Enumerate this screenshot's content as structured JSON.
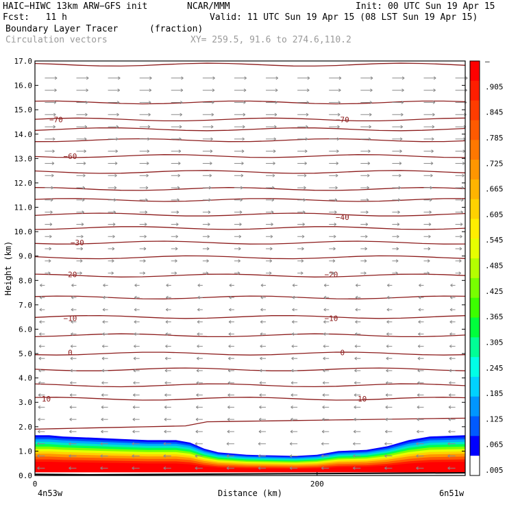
{
  "header": {
    "model": "HAIC−HIWC 13km ARW−GFS init",
    "org": "NCAR/MMM",
    "init": "Init: 00 UTC Sun 19 Apr 15",
    "fcst": "Fcst:   11 h",
    "valid": "Valid: 11 UTC Sun 19 Apr 15 (08 LST Sun 19 Apr 15)",
    "field": "Boundary Layer Tracer",
    "field_units": "(fraction)",
    "overlay": "Circulation vectors",
    "xy": "XY= 259.5, 91.6 to 274.6,110.2"
  },
  "chart_data": {
    "type": "heatmap",
    "xlabel": "Distance (km)",
    "ylabel": "Height (km)",
    "x_ticks": [
      "0",
      "200"
    ],
    "x_tick_values": [
      0,
      200
    ],
    "x_end_labels": [
      "4n53w",
      "6n51w"
    ],
    "xlim": [
      0,
      305
    ],
    "ylim": [
      0,
      17
    ],
    "y_ticks": [
      "0.0",
      "1.0",
      "2.0",
      "3.0",
      "4.0",
      "5.0",
      "6.0",
      "7.0",
      "8.0",
      "9.0",
      "10.0",
      "11.0",
      "12.0",
      "13.0",
      "14.0",
      "15.0",
      "16.0",
      "17.0"
    ],
    "colorbar": {
      "labels": [
        "–",
        ".905",
        ".845",
        ".785",
        ".725",
        ".665",
        ".605",
        ".545",
        ".485",
        ".425",
        ".365",
        ".305",
        ".245",
        ".185",
        ".125",
        ".065",
        ".005"
      ],
      "colors": [
        "#ff0000",
        "#ff1e00",
        "#ff3c00",
        "#ff5a00",
        "#ff7800",
        "#ff9600",
        "#ffb400",
        "#ffd200",
        "#ffee00",
        "#e6ff00",
        "#b4ff00",
        "#78ff00",
        "#3cff00",
        "#00ff3c",
        "#00ff96",
        "#00ffe6",
        "#00d2ff",
        "#0096ff",
        "#005aff",
        "#0000ff",
        "#ffffff"
      ]
    },
    "boundary_layer_top_km": [
      [
        0,
        1.65
      ],
      [
        10,
        1.65
      ],
      [
        20,
        1.6
      ],
      [
        40,
        1.55
      ],
      [
        60,
        1.5
      ],
      [
        80,
        1.45
      ],
      [
        100,
        1.45
      ],
      [
        110,
        1.35
      ],
      [
        120,
        1.1
      ],
      [
        130,
        0.95
      ],
      [
        150,
        0.85
      ],
      [
        170,
        0.82
      ],
      [
        185,
        0.8
      ],
      [
        200,
        0.85
      ],
      [
        215,
        1.0
      ],
      [
        235,
        1.05
      ],
      [
        250,
        1.2
      ],
      [
        265,
        1.45
      ],
      [
        280,
        1.6
      ],
      [
        305,
        1.65
      ]
    ],
    "temperature_contour_labels": [
      {
        "label": "−70",
        "x": [
          15,
          218
        ],
        "y": 14.6
      },
      {
        "label": "−60",
        "x": [
          25
        ],
        "y": 13.1
      },
      {
        "label": "−40",
        "x": [
          218
        ],
        "y": 10.6
      },
      {
        "label": "−30",
        "x": [
          30
        ],
        "y": 9.55
      },
      {
        "label": "−20",
        "x": [
          25,
          210
        ],
        "y": 8.25
      },
      {
        "label": "−10",
        "x": [
          25,
          210
        ],
        "y": 6.45
      },
      {
        "label": "0",
        "x": [
          25,
          218
        ],
        "y": 5.05
      },
      {
        "label": "10",
        "x": [
          8,
          232
        ],
        "y": 3.15
      }
    ],
    "contour_heights_km": [
      2.35,
      3.15,
      3.7,
      4.35,
      5.0,
      5.75,
      6.5,
      7.3,
      8.2,
      8.95,
      9.55,
      10.15,
      10.7,
      11.3,
      11.75,
      12.45,
      13.1,
      13.75,
      14.2,
      14.6,
      15.3,
      16.85
    ],
    "wind_note": "westerly aloft, easterly below ~8 km"
  }
}
